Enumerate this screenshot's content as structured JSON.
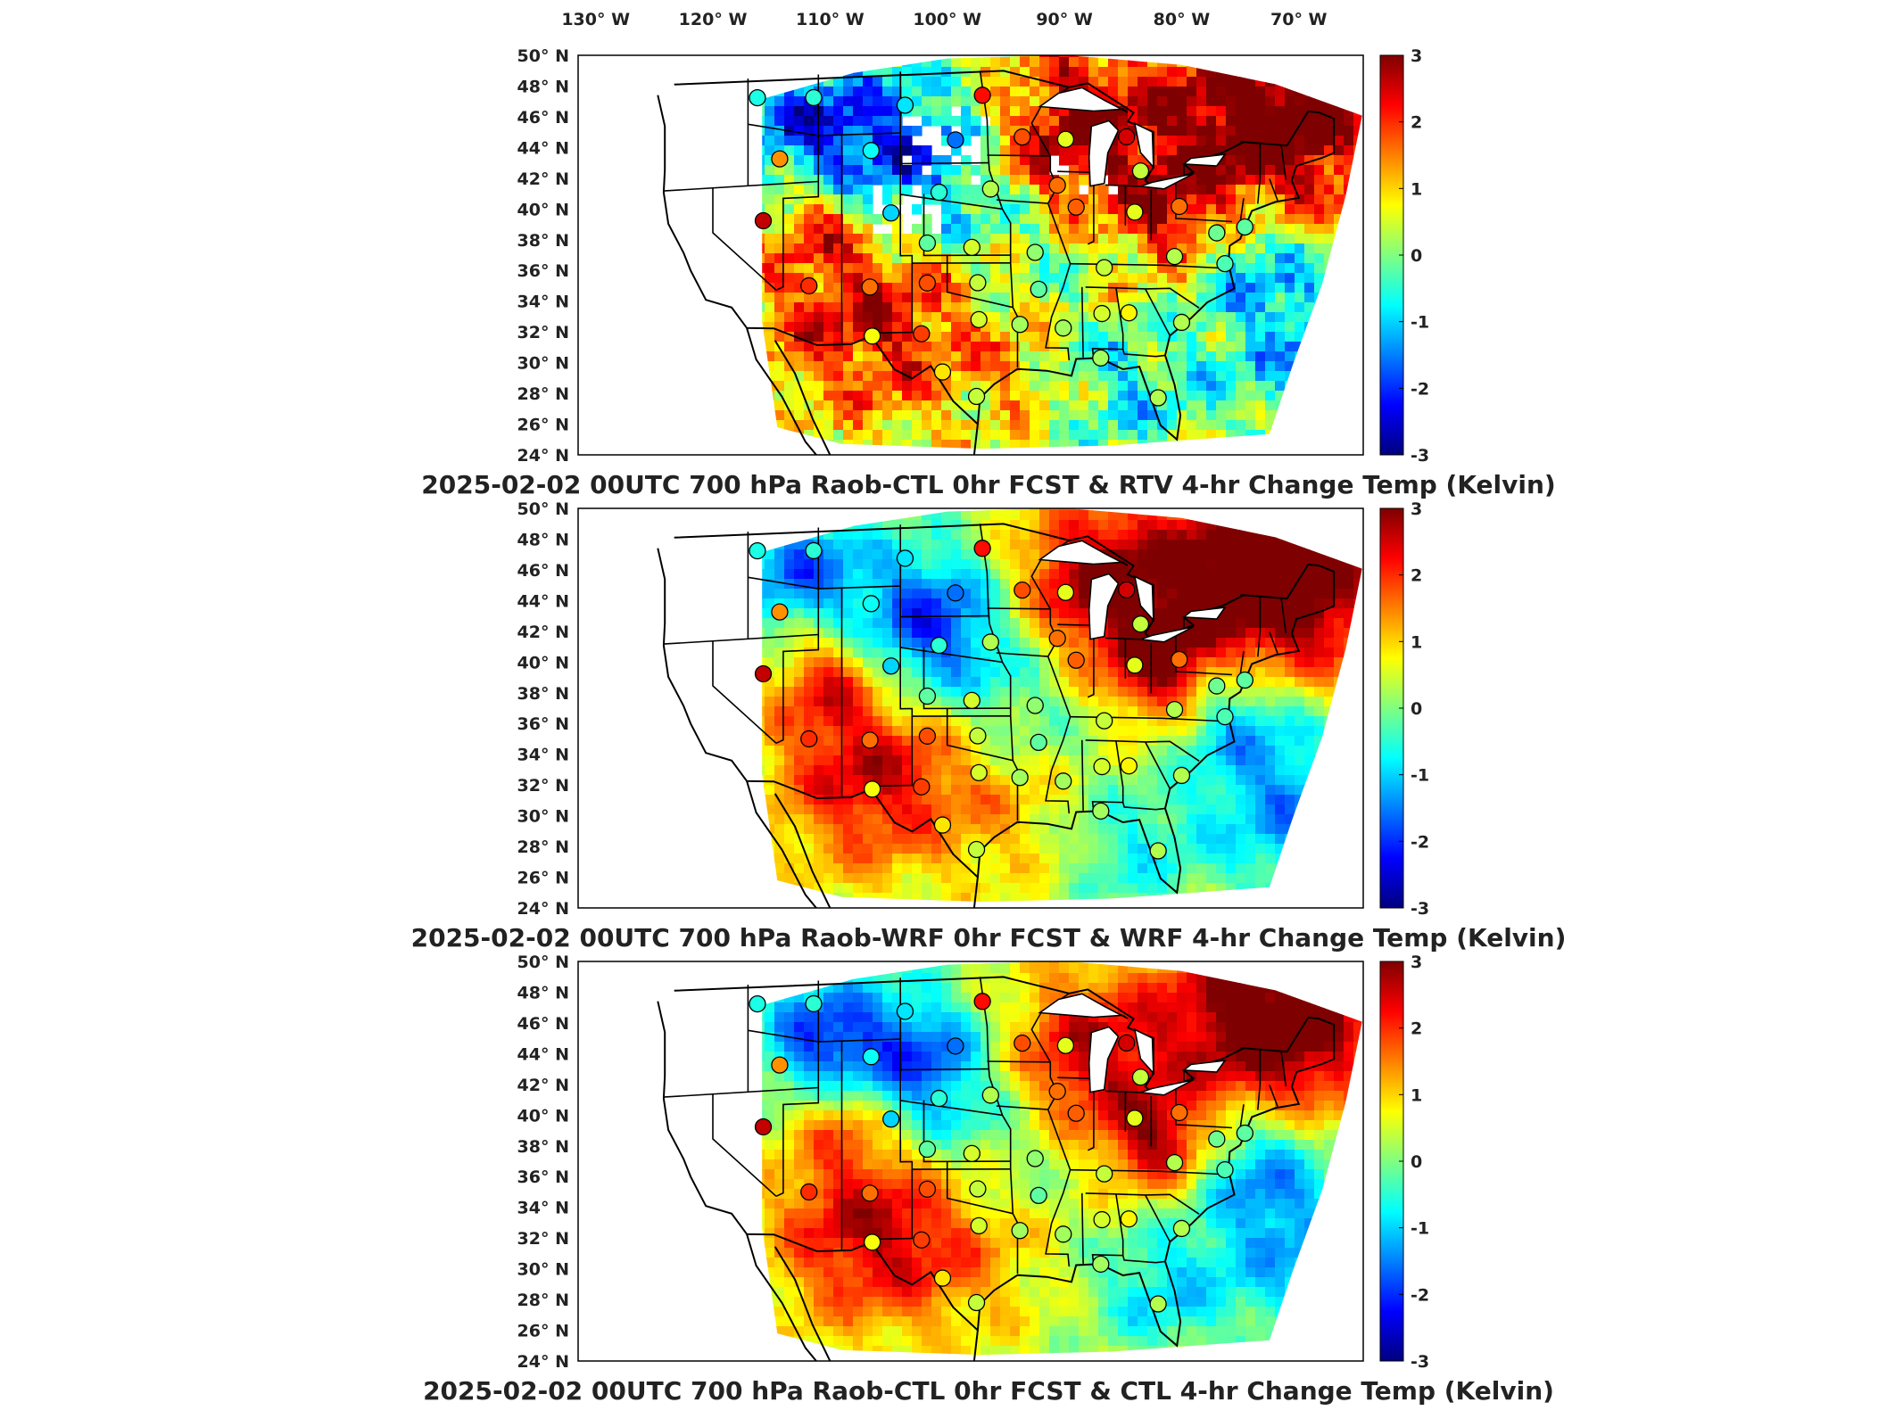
{
  "top_axis": {
    "lon_labels": [
      "130",
      "120",
      "110",
      "100",
      "90",
      "80",
      "70"
    ],
    "lon_suffix": "W"
  },
  "lat_labels": [
    "50",
    "48",
    "46",
    "44",
    "42",
    "40",
    "38",
    "36",
    "34",
    "32",
    "30",
    "28",
    "26",
    "24"
  ],
  "lat_suffix": "N",
  "degree_symbol": "°",
  "colorbar": {
    "ticks": [
      "3",
      "2",
      "1",
      "0",
      "-1",
      "-2",
      "-3"
    ],
    "range": [
      -3,
      3
    ],
    "colormap": "jet",
    "colors": [
      "#7f0000",
      "#ff0000",
      "#ff8000",
      "#ffff00",
      "#80ff80",
      "#00ffff",
      "#0080ff",
      "#0000ff",
      "#00007f"
    ]
  },
  "panels": [
    {
      "id": "rtv",
      "title": "2025-02-02 00UTC 700 hPa Raob-CTL 0hr FCST & RTV 4-hr Change Temp (Kelvin)",
      "seed": 11,
      "has_missing_data": true
    },
    {
      "id": "wrf",
      "title": "2025-02-02 00UTC 700 hPa Raob-WRF 0hr FCST & WRF 4-hr Change Temp (Kelvin)",
      "seed": 23,
      "has_missing_data": false
    },
    {
      "id": "ctl",
      "title": "2025-02-02 00UTC 700 hPa Raob-CTL 0hr FCST & CTL 4-hr Change Temp (Kelvin)",
      "seed": 37,
      "has_missing_data": false
    }
  ],
  "raob_stations": [
    {
      "lon": -116.2,
      "lat": 47.7,
      "v": -0.6
    },
    {
      "lon": -111.4,
      "lat": 47.5,
      "v": -0.5
    },
    {
      "lon": -103.6,
      "lat": 46.8,
      "v": -0.9
    },
    {
      "lon": -97.0,
      "lat": 47.4,
      "v": 2.2
    },
    {
      "lon": -114.3,
      "lat": 43.6,
      "v": 1.4
    },
    {
      "lon": -106.5,
      "lat": 43.9,
      "v": -0.7
    },
    {
      "lon": -99.3,
      "lat": 44.5,
      "v": -1.6
    },
    {
      "lon": -93.6,
      "lat": 44.7,
      "v": 1.8
    },
    {
      "lon": -89.9,
      "lat": 44.6,
      "v": 0.6
    },
    {
      "lon": -84.7,
      "lat": 44.9,
      "v": 2.5
    },
    {
      "lon": -83.5,
      "lat": 42.7,
      "v": 0.4
    },
    {
      "lon": -115.7,
      "lat": 39.6,
      "v": 2.6
    },
    {
      "lon": -104.8,
      "lat": 39.8,
      "v": -1.0
    },
    {
      "lon": -100.7,
      "lat": 41.1,
      "v": -0.5
    },
    {
      "lon": -96.3,
      "lat": 41.3,
      "v": 0.3
    },
    {
      "lon": -90.6,
      "lat": 41.6,
      "v": 1.6
    },
    {
      "lon": -89.0,
      "lat": 40.2,
      "v": 1.7
    },
    {
      "lon": -84.0,
      "lat": 40.0,
      "v": 0.6
    },
    {
      "lon": -80.2,
      "lat": 40.5,
      "v": 1.6
    },
    {
      "lon": -77.0,
      "lat": 38.9,
      "v": -0.1
    },
    {
      "lon": -74.6,
      "lat": 39.4,
      "v": -0.2
    },
    {
      "lon": -97.9,
      "lat": 37.5,
      "v": 0.5
    },
    {
      "lon": -101.7,
      "lat": 37.8,
      "v": -0.2
    },
    {
      "lon": -92.5,
      "lat": 37.2,
      "v": 0.1
    },
    {
      "lon": -86.6,
      "lat": 36.3,
      "v": 0.4
    },
    {
      "lon": -80.6,
      "lat": 37.2,
      "v": 0.3
    },
    {
      "lon": -76.3,
      "lat": 36.9,
      "v": -0.3
    },
    {
      "lon": -111.8,
      "lat": 35.2,
      "v": 2.0
    },
    {
      "lon": -106.6,
      "lat": 35.0,
      "v": 1.6
    },
    {
      "lon": -101.7,
      "lat": 35.2,
      "v": 1.8
    },
    {
      "lon": -97.4,
      "lat": 35.2,
      "v": 0.4
    },
    {
      "lon": -92.2,
      "lat": 34.8,
      "v": -0.2
    },
    {
      "lon": -86.8,
      "lat": 33.3,
      "v": 0.5
    },
    {
      "lon": -84.5,
      "lat": 33.4,
      "v": 0.8
    },
    {
      "lon": -80.0,
      "lat": 32.9,
      "v": 0.3
    },
    {
      "lon": -106.4,
      "lat": 31.8,
      "v": 0.7
    },
    {
      "lon": -102.2,
      "lat": 31.9,
      "v": 1.9
    },
    {
      "lon": -97.3,
      "lat": 32.8,
      "v": 0.5
    },
    {
      "lon": -93.8,
      "lat": 32.5,
      "v": 0.2
    },
    {
      "lon": -90.1,
      "lat": 32.3,
      "v": 0.2
    },
    {
      "lon": -86.9,
      "lat": 30.4,
      "v": 0.2
    },
    {
      "lon": -100.4,
      "lat": 29.4,
      "v": 0.9
    },
    {
      "lon": -97.5,
      "lat": 27.8,
      "v": 0.4
    },
    {
      "lon": -82.0,
      "lat": 27.9,
      "v": 0.3
    }
  ]
}
